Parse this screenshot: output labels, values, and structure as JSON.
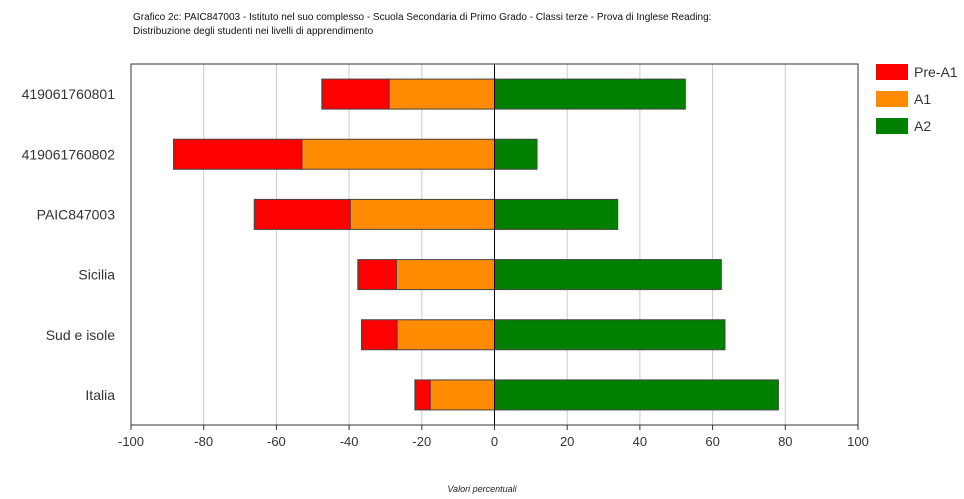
{
  "title_line1": "Grafico 2c: PAIC847003 - Istituto nel suo complesso - Scuola Secondaria di Primo Grado - Classi terze - Prova di Inglese Reading:",
  "title_line2": "Distribuzione degli studenti nei livelli di apprendimento",
  "chart_data": {
    "type": "bar",
    "orientation": "horizontal",
    "stacked": "diverging",
    "title": "Grafico 2c: PAIC847003 - Istituto nel suo complesso - Scuola Secondaria di Primo Grado - Classi terze - Prova di Inglese Reading: Distribuzione degli studenti nei livelli di apprendimento",
    "xlabel": "Valori percentuali",
    "ylabel": "",
    "xlim": [
      -100,
      100
    ],
    "xticks": [
      -100,
      -80,
      -60,
      -40,
      -20,
      0,
      20,
      40,
      60,
      80,
      100
    ],
    "grid": true,
    "legend": "right",
    "categories": [
      "419061760801",
      "419061760802",
      "PAIC847003",
      "Sicilia",
      "Sud e isole",
      "Italia"
    ],
    "series": [
      {
        "name": "Pre-A1",
        "color": "#ff0000",
        "values": [
          18.5,
          35.3,
          26.4,
          10.6,
          9.8,
          4.2
        ]
      },
      {
        "name": "A1",
        "color": "#ff8c00",
        "values": [
          29.0,
          53.0,
          39.7,
          27.0,
          26.8,
          17.7
        ]
      },
      {
        "name": "A2",
        "color": "#008000",
        "values": [
          52.5,
          11.7,
          33.9,
          62.4,
          63.4,
          78.1
        ]
      }
    ]
  }
}
